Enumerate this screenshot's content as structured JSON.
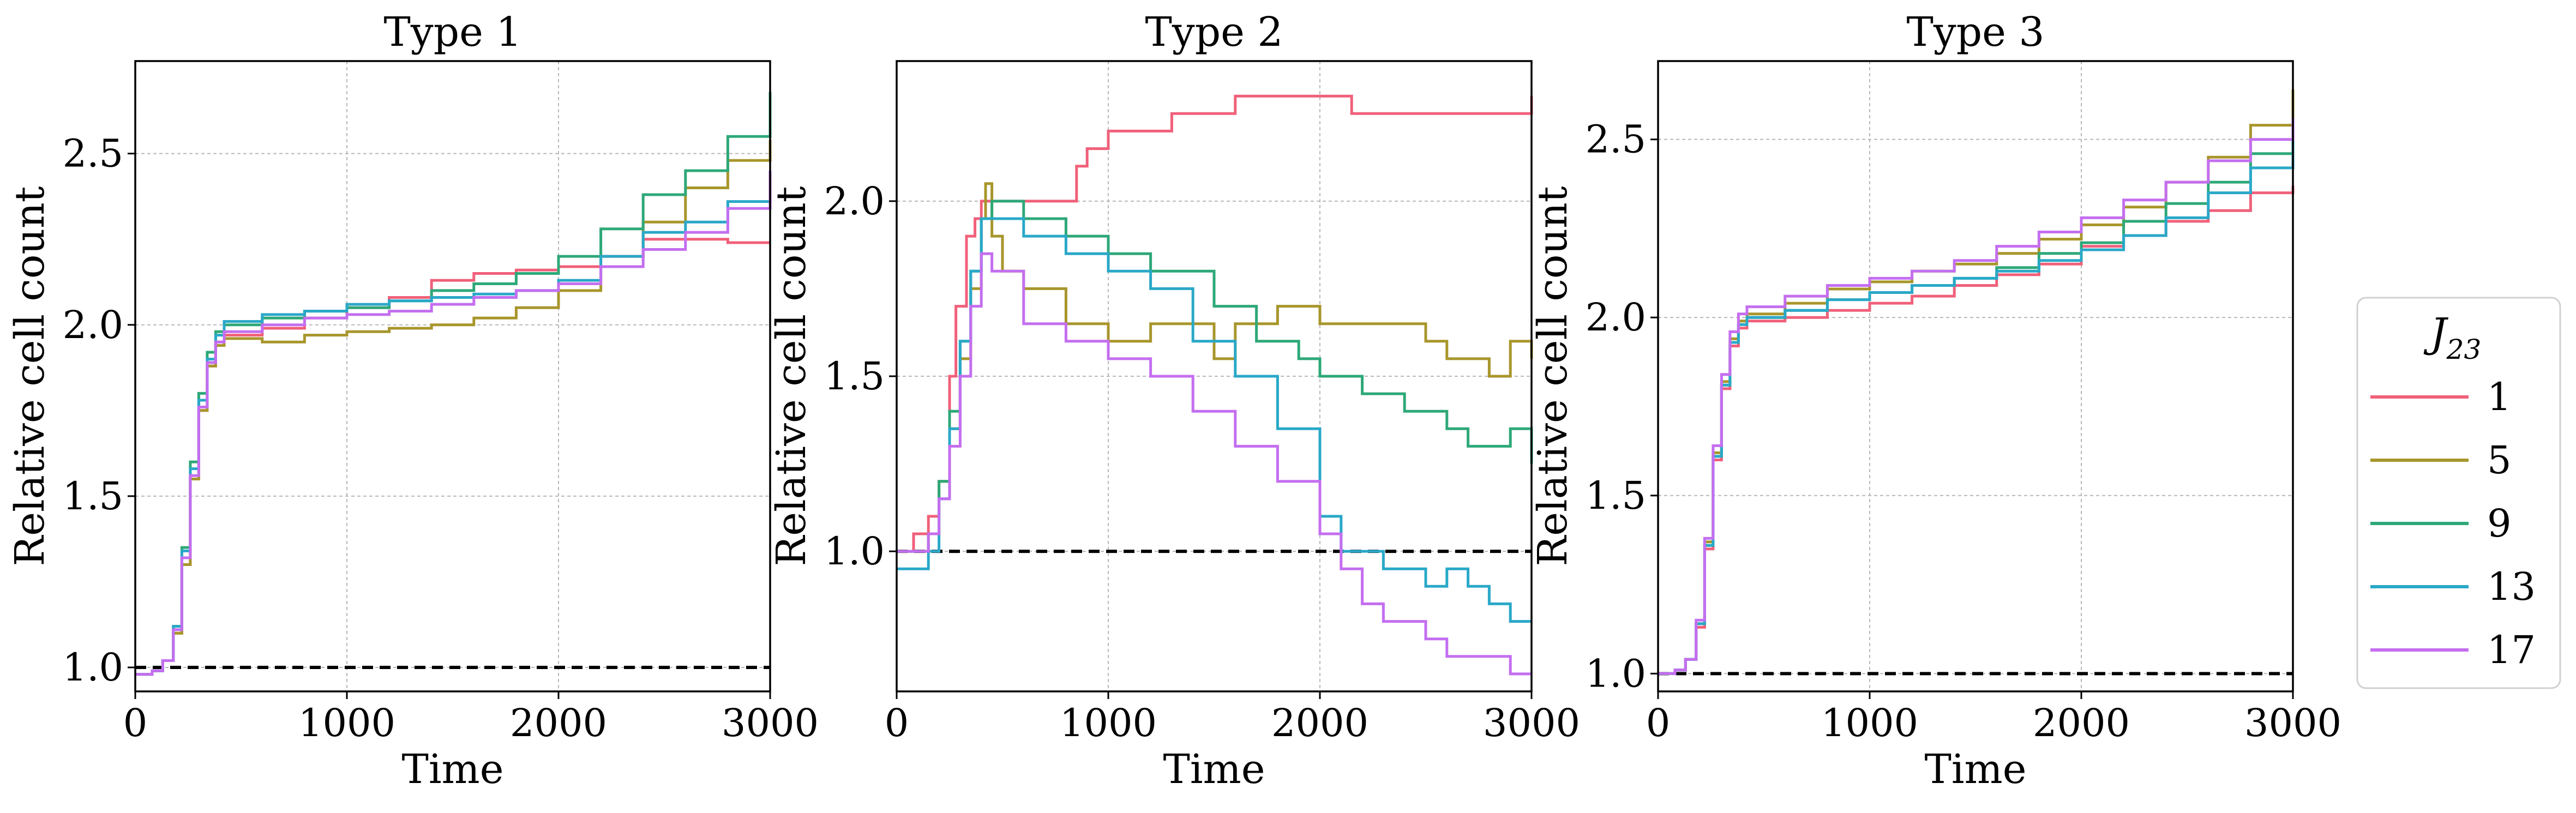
{
  "legend": {
    "title_main": "J",
    "title_sub": "23",
    "entries": [
      {
        "label": "1",
        "color": "#f0607a"
      },
      {
        "label": "5",
        "color": "#a8962c"
      },
      {
        "label": "9",
        "color": "#2ea878"
      },
      {
        "label": "13",
        "color": "#2aa8c8"
      },
      {
        "label": "17",
        "color": "#c46ef0"
      }
    ]
  },
  "chart_data": [
    {
      "type": "line",
      "title": "Type 1",
      "xlabel": "Time",
      "ylabel": "Relative cell count",
      "xlim": [
        0,
        3000
      ],
      "ylim": [
        0.93,
        2.77
      ],
      "xticks": [
        0,
        1000,
        2000,
        3000
      ],
      "yticks": [
        1.0,
        1.5,
        2.0,
        2.5
      ],
      "xtick_labels": [
        "0",
        "1000",
        "2000",
        "3000"
      ],
      "ytick_labels": [
        "1.0",
        "1.5",
        "2.0",
        "2.5"
      ],
      "grid": true,
      "reference_line": 1.0,
      "series": [
        {
          "name": "1",
          "x": [
            0,
            80,
            130,
            180,
            220,
            260,
            300,
            340,
            380,
            420,
            600,
            800,
            1000,
            1200,
            1400,
            1600,
            1800,
            2000,
            2200,
            2400,
            2600,
            2800,
            3000
          ],
          "y": [
            0.98,
            0.99,
            1.02,
            1.1,
            1.3,
            1.55,
            1.75,
            1.88,
            1.95,
            1.97,
            1.99,
            2.02,
            2.05,
            2.08,
            2.13,
            2.15,
            2.16,
            2.17,
            2.2,
            2.25,
            2.25,
            2.24,
            2.24
          ]
        },
        {
          "name": "5",
          "x": [
            0,
            80,
            130,
            180,
            220,
            260,
            300,
            340,
            380,
            420,
            600,
            800,
            1000,
            1200,
            1400,
            1600,
            1800,
            2000,
            2200,
            2400,
            2600,
            2800,
            3000
          ],
          "y": [
            0.98,
            0.99,
            1.02,
            1.1,
            1.3,
            1.55,
            1.75,
            1.88,
            1.94,
            1.96,
            1.95,
            1.97,
            1.98,
            1.99,
            2.0,
            2.02,
            2.05,
            2.1,
            2.2,
            2.3,
            2.4,
            2.48,
            2.54
          ]
        },
        {
          "name": "9",
          "x": [
            0,
            80,
            130,
            180,
            220,
            260,
            300,
            340,
            380,
            420,
            600,
            800,
            1000,
            1200,
            1400,
            1600,
            1800,
            2000,
            2200,
            2400,
            2600,
            2800,
            3000
          ],
          "y": [
            0.98,
            0.99,
            1.02,
            1.12,
            1.35,
            1.6,
            1.8,
            1.92,
            1.98,
            2.0,
            2.02,
            2.04,
            2.05,
            2.07,
            2.1,
            2.12,
            2.15,
            2.2,
            2.28,
            2.38,
            2.45,
            2.55,
            2.68
          ]
        },
        {
          "name": "13",
          "x": [
            0,
            80,
            130,
            180,
            220,
            260,
            300,
            340,
            380,
            420,
            600,
            800,
            1000,
            1200,
            1400,
            1600,
            1800,
            2000,
            2200,
            2400,
            2600,
            2800,
            3000
          ],
          "y": [
            0.98,
            0.99,
            1.02,
            1.12,
            1.34,
            1.58,
            1.78,
            1.9,
            1.97,
            2.01,
            2.03,
            2.04,
            2.06,
            2.07,
            2.08,
            2.09,
            2.1,
            2.13,
            2.2,
            2.27,
            2.3,
            2.36,
            2.45
          ]
        },
        {
          "name": "17",
          "x": [
            0,
            80,
            130,
            180,
            220,
            260,
            300,
            340,
            380,
            420,
            600,
            800,
            1000,
            1200,
            1400,
            1600,
            1800,
            2000,
            2200,
            2400,
            2600,
            2800,
            3000
          ],
          "y": [
            0.98,
            0.99,
            1.02,
            1.11,
            1.32,
            1.56,
            1.76,
            1.89,
            1.95,
            1.98,
            2.0,
            2.02,
            2.03,
            2.04,
            2.06,
            2.08,
            2.1,
            2.12,
            2.17,
            2.22,
            2.27,
            2.34,
            2.45
          ]
        }
      ]
    },
    {
      "type": "line",
      "title": "Type 2",
      "xlabel": "Time",
      "ylabel": "Relative cell count",
      "xlim": [
        0,
        3000
      ],
      "ylim": [
        0.6,
        2.4
      ],
      "xticks": [
        0,
        1000,
        2000,
        3000
      ],
      "yticks": [
        1.0,
        1.5,
        2.0
      ],
      "xtick_labels": [
        "0",
        "1000",
        "2000",
        "3000"
      ],
      "ytick_labels": [
        "1.0",
        "1.5",
        "2.0"
      ],
      "grid": true,
      "reference_line": 1.0,
      "series": [
        {
          "name": "1",
          "x": [
            0,
            80,
            150,
            200,
            250,
            280,
            330,
            370,
            400,
            800,
            850,
            900,
            1000,
            1200,
            1300,
            1500,
            1600,
            2000,
            2150,
            2900,
            3000
          ],
          "y": [
            1.0,
            1.05,
            1.1,
            1.2,
            1.5,
            1.7,
            1.9,
            1.95,
            2.0,
            2.0,
            2.1,
            2.15,
            2.2,
            2.2,
            2.25,
            2.25,
            2.3,
            2.3,
            2.25,
            2.25,
            2.3
          ]
        },
        {
          "name": "5",
          "x": [
            0,
            80,
            150,
            200,
            250,
            300,
            350,
            400,
            420,
            450,
            500,
            600,
            800,
            1000,
            1200,
            1500,
            1600,
            1800,
            2000,
            2200,
            2500,
            2600,
            2700,
            2800,
            2900,
            3000
          ],
          "y": [
            1.0,
            1.0,
            1.05,
            1.2,
            1.35,
            1.55,
            1.75,
            1.95,
            2.05,
            1.9,
            1.8,
            1.75,
            1.65,
            1.6,
            1.65,
            1.55,
            1.65,
            1.7,
            1.65,
            1.65,
            1.6,
            1.55,
            1.55,
            1.5,
            1.6,
            1.55
          ]
        },
        {
          "name": "9",
          "x": [
            0,
            80,
            150,
            200,
            250,
            300,
            350,
            400,
            450,
            600,
            800,
            1000,
            1200,
            1500,
            1700,
            1900,
            2000,
            2200,
            2400,
            2600,
            2700,
            2800,
            2900,
            3000
          ],
          "y": [
            1.0,
            1.0,
            1.05,
            1.2,
            1.4,
            1.6,
            1.8,
            1.95,
            2.0,
            1.95,
            1.9,
            1.85,
            1.8,
            1.7,
            1.6,
            1.55,
            1.5,
            1.45,
            1.4,
            1.35,
            1.3,
            1.3,
            1.35,
            1.25
          ]
        },
        {
          "name": "13",
          "x": [
            0,
            80,
            150,
            200,
            250,
            300,
            350,
            400,
            450,
            600,
            800,
            1000,
            1200,
            1400,
            1600,
            1800,
            2000,
            2100,
            2300,
            2500,
            2600,
            2700,
            2800,
            2900,
            3000
          ],
          "y": [
            0.95,
            0.95,
            1.0,
            1.15,
            1.35,
            1.6,
            1.8,
            1.95,
            1.95,
            1.9,
            1.85,
            1.8,
            1.75,
            1.6,
            1.5,
            1.35,
            1.1,
            1.0,
            0.95,
            0.9,
            0.95,
            0.9,
            0.85,
            0.8,
            0.8
          ]
        },
        {
          "name": "17",
          "x": [
            0,
            80,
            150,
            200,
            250,
            300,
            350,
            400,
            450,
            600,
            800,
            1000,
            1200,
            1400,
            1600,
            1800,
            2000,
            2100,
            2200,
            2300,
            2500,
            2600,
            2700,
            2800,
            2900,
            3000
          ],
          "y": [
            1.0,
            1.0,
            1.05,
            1.15,
            1.3,
            1.5,
            1.7,
            1.85,
            1.8,
            1.65,
            1.6,
            1.55,
            1.5,
            1.4,
            1.3,
            1.2,
            1.05,
            0.95,
            0.85,
            0.8,
            0.75,
            0.7,
            0.7,
            0.7,
            0.65,
            0.65
          ]
        }
      ]
    },
    {
      "type": "line",
      "title": "Type 3",
      "xlabel": "Time",
      "ylabel": "Relative cell count",
      "xlim": [
        0,
        3000
      ],
      "ylim": [
        0.95,
        2.72
      ],
      "xticks": [
        0,
        1000,
        2000,
        3000
      ],
      "yticks": [
        1.0,
        1.5,
        2.0,
        2.5
      ],
      "xtick_labels": [
        "0",
        "1000",
        "2000",
        "3000"
      ],
      "ytick_labels": [
        "1.0",
        "1.5",
        "2.0",
        "2.5"
      ],
      "grid": true,
      "reference_line": 1.0,
      "series": [
        {
          "name": "1",
          "x": [
            0,
            80,
            130,
            180,
            220,
            260,
            300,
            340,
            380,
            420,
            600,
            800,
            1000,
            1200,
            1400,
            1600,
            1800,
            2000,
            2200,
            2400,
            2600,
            2800,
            3000
          ],
          "y": [
            1.0,
            1.01,
            1.04,
            1.13,
            1.35,
            1.6,
            1.8,
            1.92,
            1.97,
            1.99,
            2.0,
            2.02,
            2.04,
            2.06,
            2.09,
            2.12,
            2.15,
            2.2,
            2.23,
            2.27,
            2.3,
            2.35,
            2.37
          ]
        },
        {
          "name": "5",
          "x": [
            0,
            80,
            130,
            180,
            220,
            260,
            300,
            340,
            380,
            420,
            600,
            800,
            1000,
            1200,
            1400,
            1600,
            1800,
            2000,
            2200,
            2400,
            2600,
            2800,
            3000
          ],
          "y": [
            1.0,
            1.01,
            1.04,
            1.14,
            1.37,
            1.62,
            1.82,
            1.94,
            1.99,
            2.01,
            2.04,
            2.08,
            2.1,
            2.13,
            2.15,
            2.18,
            2.22,
            2.26,
            2.31,
            2.38,
            2.45,
            2.54,
            2.64
          ]
        },
        {
          "name": "9",
          "x": [
            0,
            80,
            130,
            180,
            220,
            260,
            300,
            340,
            380,
            420,
            600,
            800,
            1000,
            1200,
            1400,
            1600,
            1800,
            2000,
            2200,
            2400,
            2600,
            2800,
            3000
          ],
          "y": [
            1.0,
            1.01,
            1.04,
            1.14,
            1.36,
            1.61,
            1.81,
            1.93,
            1.98,
            2.0,
            2.02,
            2.05,
            2.07,
            2.09,
            2.11,
            2.14,
            2.18,
            2.21,
            2.27,
            2.32,
            2.38,
            2.46,
            2.55
          ]
        },
        {
          "name": "13",
          "x": [
            0,
            80,
            130,
            180,
            220,
            260,
            300,
            340,
            380,
            420,
            600,
            800,
            1000,
            1200,
            1400,
            1600,
            1800,
            2000,
            2200,
            2400,
            2600,
            2800,
            3000
          ],
          "y": [
            1.0,
            1.01,
            1.04,
            1.14,
            1.36,
            1.61,
            1.81,
            1.93,
            1.98,
            2.0,
            2.02,
            2.05,
            2.07,
            2.09,
            2.11,
            2.13,
            2.16,
            2.19,
            2.23,
            2.28,
            2.35,
            2.42,
            2.52
          ]
        },
        {
          "name": "17",
          "x": [
            0,
            80,
            130,
            180,
            220,
            260,
            300,
            340,
            380,
            420,
            600,
            800,
            1000,
            1200,
            1400,
            1600,
            1800,
            2000,
            2200,
            2400,
            2600,
            2800,
            3000
          ],
          "y": [
            1.0,
            1.01,
            1.04,
            1.15,
            1.38,
            1.64,
            1.84,
            1.96,
            2.01,
            2.03,
            2.06,
            2.09,
            2.11,
            2.13,
            2.16,
            2.2,
            2.24,
            2.28,
            2.33,
            2.38,
            2.44,
            2.5,
            2.56
          ]
        }
      ]
    }
  ]
}
